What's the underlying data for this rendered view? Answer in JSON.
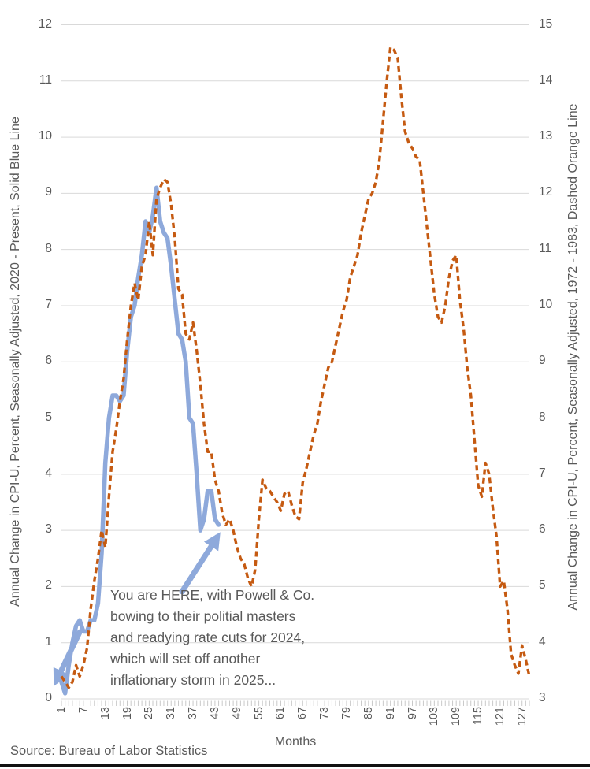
{
  "chart_data": {
    "type": "line",
    "title": "",
    "xlabel": "Months",
    "source": "Source: Bureau of Labor Statistics",
    "months_total": 129,
    "x_ticks": [
      1,
      7,
      13,
      19,
      25,
      31,
      37,
      43,
      49,
      55,
      61,
      67,
      73,
      79,
      85,
      91,
      97,
      103,
      109,
      115,
      121,
      127
    ],
    "grid": true,
    "gridline_color": "#D9D9D9",
    "tick_strip_color": "#C9C9C9",
    "text_color": "#595959",
    "left_axis": {
      "label": "Annual Change in CPI-U, Percent, Seasonally Adjusted, 2020 - Present,  Solid Blue Line",
      "min": 0,
      "max": 12,
      "ticks": [
        12,
        11,
        10,
        9,
        8,
        7,
        6,
        5,
        4,
        3,
        2,
        1,
        0
      ]
    },
    "right_axis": {
      "label": "Annual Change in CPI-U, Percent, Seasonally Adjusted, 1972 - 1983, Dashed Orange Line",
      "min": 3,
      "max": 15,
      "ticks": [
        15,
        14,
        13,
        12,
        11,
        10,
        9,
        8,
        7,
        6,
        5,
        4,
        3
      ]
    },
    "series": [
      {
        "name": "2020 - Present, Solid Blue Line",
        "axis": "left",
        "style": "solid",
        "color": "#8EA9DB",
        "stroke_width": 5.5,
        "start_month": 1,
        "values": [
          0.3,
          0.1,
          0.6,
          1.0,
          1.3,
          1.4,
          1.2,
          1.2,
          1.4,
          1.4,
          1.7,
          2.6,
          4.2,
          5.0,
          5.4,
          5.4,
          5.3,
          5.4,
          6.2,
          6.8,
          7.0,
          7.5,
          7.9,
          8.5,
          8.3,
          8.6,
          9.1,
          8.5,
          8.3,
          8.2,
          7.7,
          7.1,
          6.5,
          6.4,
          6.0,
          5.0,
          4.9,
          4.0,
          3.0,
          3.2,
          3.7,
          3.7,
          3.2,
          3.1
        ]
      },
      {
        "name": "1972 - 1983, Dashed Orange Line",
        "axis": "right",
        "style": "dashed",
        "color": "#C55A11",
        "stroke_width": 3.4,
        "dash": "7 4.5",
        "start_month": 1,
        "values": [
          3.4,
          3.3,
          3.2,
          3.3,
          3.6,
          3.4,
          3.6,
          3.9,
          4.6,
          5.1,
          5.5,
          6.0,
          5.7,
          6.6,
          7.4,
          7.8,
          8.3,
          8.7,
          9.4,
          10.0,
          10.4,
          10.1,
          10.7,
          10.9,
          11.5,
          10.9,
          11.9,
          12.1,
          12.25,
          12.2,
          11.8,
          11.2,
          10.3,
          10.2,
          9.5,
          9.4,
          9.7,
          9.2,
          8.6,
          7.9,
          7.4,
          7.4,
          6.9,
          6.7,
          6.3,
          6.1,
          6.2,
          6.0,
          5.7,
          5.5,
          5.4,
          5.15,
          5.0,
          5.3,
          6.2,
          6.9,
          6.75,
          6.7,
          6.6,
          6.5,
          6.35,
          6.65,
          6.7,
          6.45,
          6.25,
          6.2,
          6.85,
          7.1,
          7.4,
          7.7,
          7.9,
          8.3,
          8.6,
          8.9,
          9.0,
          9.3,
          9.6,
          9.9,
          10.1,
          10.5,
          10.7,
          10.9,
          11.3,
          11.6,
          11.9,
          12.0,
          12.2,
          12.6,
          13.3,
          14.0,
          14.6,
          14.55,
          14.4,
          13.7,
          13.1,
          12.9,
          12.8,
          12.65,
          12.6,
          12.0,
          11.4,
          10.8,
          10.2,
          9.8,
          9.7,
          10.0,
          10.5,
          10.8,
          10.9,
          10.1,
          9.6,
          8.9,
          8.4,
          7.6,
          6.8,
          6.6,
          7.2,
          7.0,
          6.4,
          5.9,
          5.0,
          5.1,
          4.6,
          3.8,
          3.6,
          3.45,
          3.95,
          3.7,
          3.4
        ]
      }
    ],
    "annotation": {
      "color": "#8EA9DB",
      "lines": [
        "You are HERE, with Powell & Co.",
        "bowing to their politial masters",
        "and readying rate cuts for 2024,",
        "which will set off another",
        "inflationary storm in 2025..."
      ],
      "arrows": [
        {
          "name": "you-are-here-arrow",
          "from_month": 34.0,
          "from_value": 1.91,
          "to_month": 43.6,
          "to_value": 2.88
        },
        {
          "name": "line-start-arrow",
          "from_month": 6.0,
          "from_value": 1.19,
          "to_month": -0.4,
          "to_value": 0.32
        }
      ]
    }
  }
}
